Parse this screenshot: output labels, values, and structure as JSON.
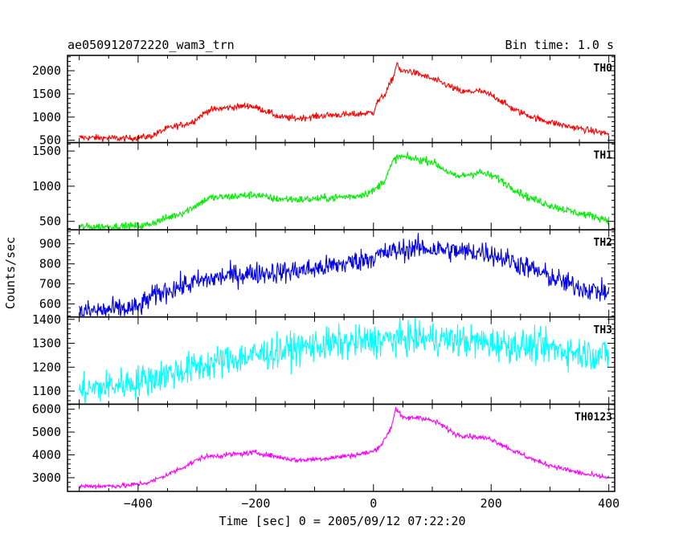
{
  "header": {
    "title": "ae050912072220_wam3_trn",
    "bin_time": "Bin time: 1.0 s"
  },
  "chart_data": {
    "type": "line",
    "title": "ae050912072220_wam3_trn",
    "xlabel": "Time [sec] 0 = 2005/09/12 07:22:20",
    "ylabel": "Counts/sec",
    "xlim": [
      -520,
      410
    ],
    "x_ticks": [
      -400,
      -200,
      0,
      200,
      400
    ],
    "x_tick_labels": [
      "−400",
      "−200",
      "0",
      "200",
      "400"
    ],
    "x_start": -500,
    "x_end": 400,
    "grid": false,
    "panels": [
      {
        "name": "TH0",
        "color": "#ff0000",
        "ylim": [
          450,
          2330
        ],
        "y_ticks": [
          500,
          1000,
          1500,
          2000
        ],
        "y_tick_labels": [
          "500",
          "1000",
          "1500",
          "2000"
        ],
        "noise": 35,
        "trend": [
          [
            -500,
            560
          ],
          [
            -420,
            540
          ],
          [
            -380,
            580
          ],
          [
            -350,
            760
          ],
          [
            -310,
            880
          ],
          [
            -280,
            1150
          ],
          [
            -250,
            1200
          ],
          [
            -210,
            1250
          ],
          [
            -180,
            1120
          ],
          [
            -160,
            1000
          ],
          [
            -130,
            970
          ],
          [
            -80,
            1040
          ],
          [
            -30,
            1060
          ],
          [
            0,
            1100
          ],
          [
            5,
            1300
          ],
          [
            20,
            1500
          ],
          [
            35,
            1900
          ],
          [
            40,
            2200
          ],
          [
            45,
            1980
          ],
          [
            60,
            2000
          ],
          [
            90,
            1870
          ],
          [
            120,
            1720
          ],
          [
            150,
            1540
          ],
          [
            180,
            1560
          ],
          [
            205,
            1450
          ],
          [
            240,
            1150
          ],
          [
            280,
            960
          ],
          [
            320,
            830
          ],
          [
            360,
            730
          ],
          [
            400,
            640
          ]
        ]
      },
      {
        "name": "TH1",
        "color": "#00ee00",
        "ylim": [
          380,
          1620
        ],
        "y_ticks": [
          500,
          1000,
          1500
        ],
        "y_tick_labels": [
          "500",
          "1000",
          "1500"
        ],
        "noise": 28,
        "trend": [
          [
            -500,
            420
          ],
          [
            -420,
            430
          ],
          [
            -390,
            440
          ],
          [
            -360,
            520
          ],
          [
            -320,
            640
          ],
          [
            -280,
            830
          ],
          [
            -230,
            860
          ],
          [
            -200,
            880
          ],
          [
            -170,
            820
          ],
          [
            -120,
            810
          ],
          [
            -80,
            830
          ],
          [
            -30,
            860
          ],
          [
            0,
            930
          ],
          [
            20,
            1100
          ],
          [
            35,
            1380
          ],
          [
            45,
            1420
          ],
          [
            70,
            1390
          ],
          [
            100,
            1350
          ],
          [
            140,
            1130
          ],
          [
            180,
            1200
          ],
          [
            210,
            1120
          ],
          [
            260,
            850
          ],
          [
            300,
            730
          ],
          [
            340,
            630
          ],
          [
            370,
            580
          ],
          [
            400,
            520
          ]
        ]
      },
      {
        "name": "TH2",
        "color": "#0000ee",
        "ylim": [
          535,
          970
        ],
        "y_ticks": [
          600,
          700,
          800,
          900
        ],
        "y_tick_labels": [
          "600",
          "700",
          "800",
          "900"
        ],
        "noise": 28,
        "trend": [
          [
            -500,
            560
          ],
          [
            -400,
            580
          ],
          [
            -380,
            630
          ],
          [
            -350,
            670
          ],
          [
            -300,
            710
          ],
          [
            -250,
            740
          ],
          [
            -200,
            755
          ],
          [
            -150,
            760
          ],
          [
            -100,
            775
          ],
          [
            -50,
            800
          ],
          [
            0,
            835
          ],
          [
            30,
            860
          ],
          [
            70,
            880
          ],
          [
            100,
            875
          ],
          [
            150,
            860
          ],
          [
            190,
            860
          ],
          [
            230,
            820
          ],
          [
            280,
            760
          ],
          [
            330,
            700
          ],
          [
            370,
            670
          ],
          [
            400,
            655
          ]
        ]
      },
      {
        "name": "TH3",
        "color": "#00ffff",
        "ylim": [
          1045,
          1410
        ],
        "y_ticks": [
          1100,
          1200,
          1300,
          1400
        ],
        "y_tick_labels": [
          "1100",
          "1200",
          "1300",
          "1400"
        ],
        "noise": 35,
        "trend": [
          [
            -500,
            1100
          ],
          [
            -450,
            1120
          ],
          [
            -400,
            1140
          ],
          [
            -350,
            1170
          ],
          [
            -300,
            1200
          ],
          [
            -250,
            1230
          ],
          [
            -200,
            1250
          ],
          [
            -150,
            1270
          ],
          [
            -100,
            1290
          ],
          [
            -50,
            1300
          ],
          [
            0,
            1310
          ],
          [
            50,
            1320
          ],
          [
            100,
            1320
          ],
          [
            150,
            1310
          ],
          [
            200,
            1300
          ],
          [
            250,
            1290
          ],
          [
            300,
            1280
          ],
          [
            350,
            1260
          ],
          [
            400,
            1250
          ]
        ]
      },
      {
        "name": "TH0123",
        "color": "#ff00ff",
        "ylim": [
          2400,
          6220
        ],
        "y_ticks": [
          3000,
          4000,
          5000,
          6000
        ],
        "y_tick_labels": [
          "3000",
          "4000",
          "5000",
          "6000"
        ],
        "noise": 55,
        "trend": [
          [
            -500,
            2620
          ],
          [
            -420,
            2650
          ],
          [
            -380,
            2800
          ],
          [
            -340,
            3250
          ],
          [
            -290,
            3900
          ],
          [
            -250,
            4000
          ],
          [
            -200,
            4100
          ],
          [
            -170,
            3950
          ],
          [
            -130,
            3760
          ],
          [
            -80,
            3850
          ],
          [
            -30,
            4000
          ],
          [
            0,
            4150
          ],
          [
            15,
            4500
          ],
          [
            30,
            5200
          ],
          [
            38,
            6050
          ],
          [
            50,
            5600
          ],
          [
            80,
            5650
          ],
          [
            110,
            5400
          ],
          [
            140,
            4900
          ],
          [
            170,
            4800
          ],
          [
            200,
            4700
          ],
          [
            240,
            4150
          ],
          [
            280,
            3700
          ],
          [
            320,
            3400
          ],
          [
            360,
            3150
          ],
          [
            400,
            3000
          ]
        ]
      }
    ]
  }
}
